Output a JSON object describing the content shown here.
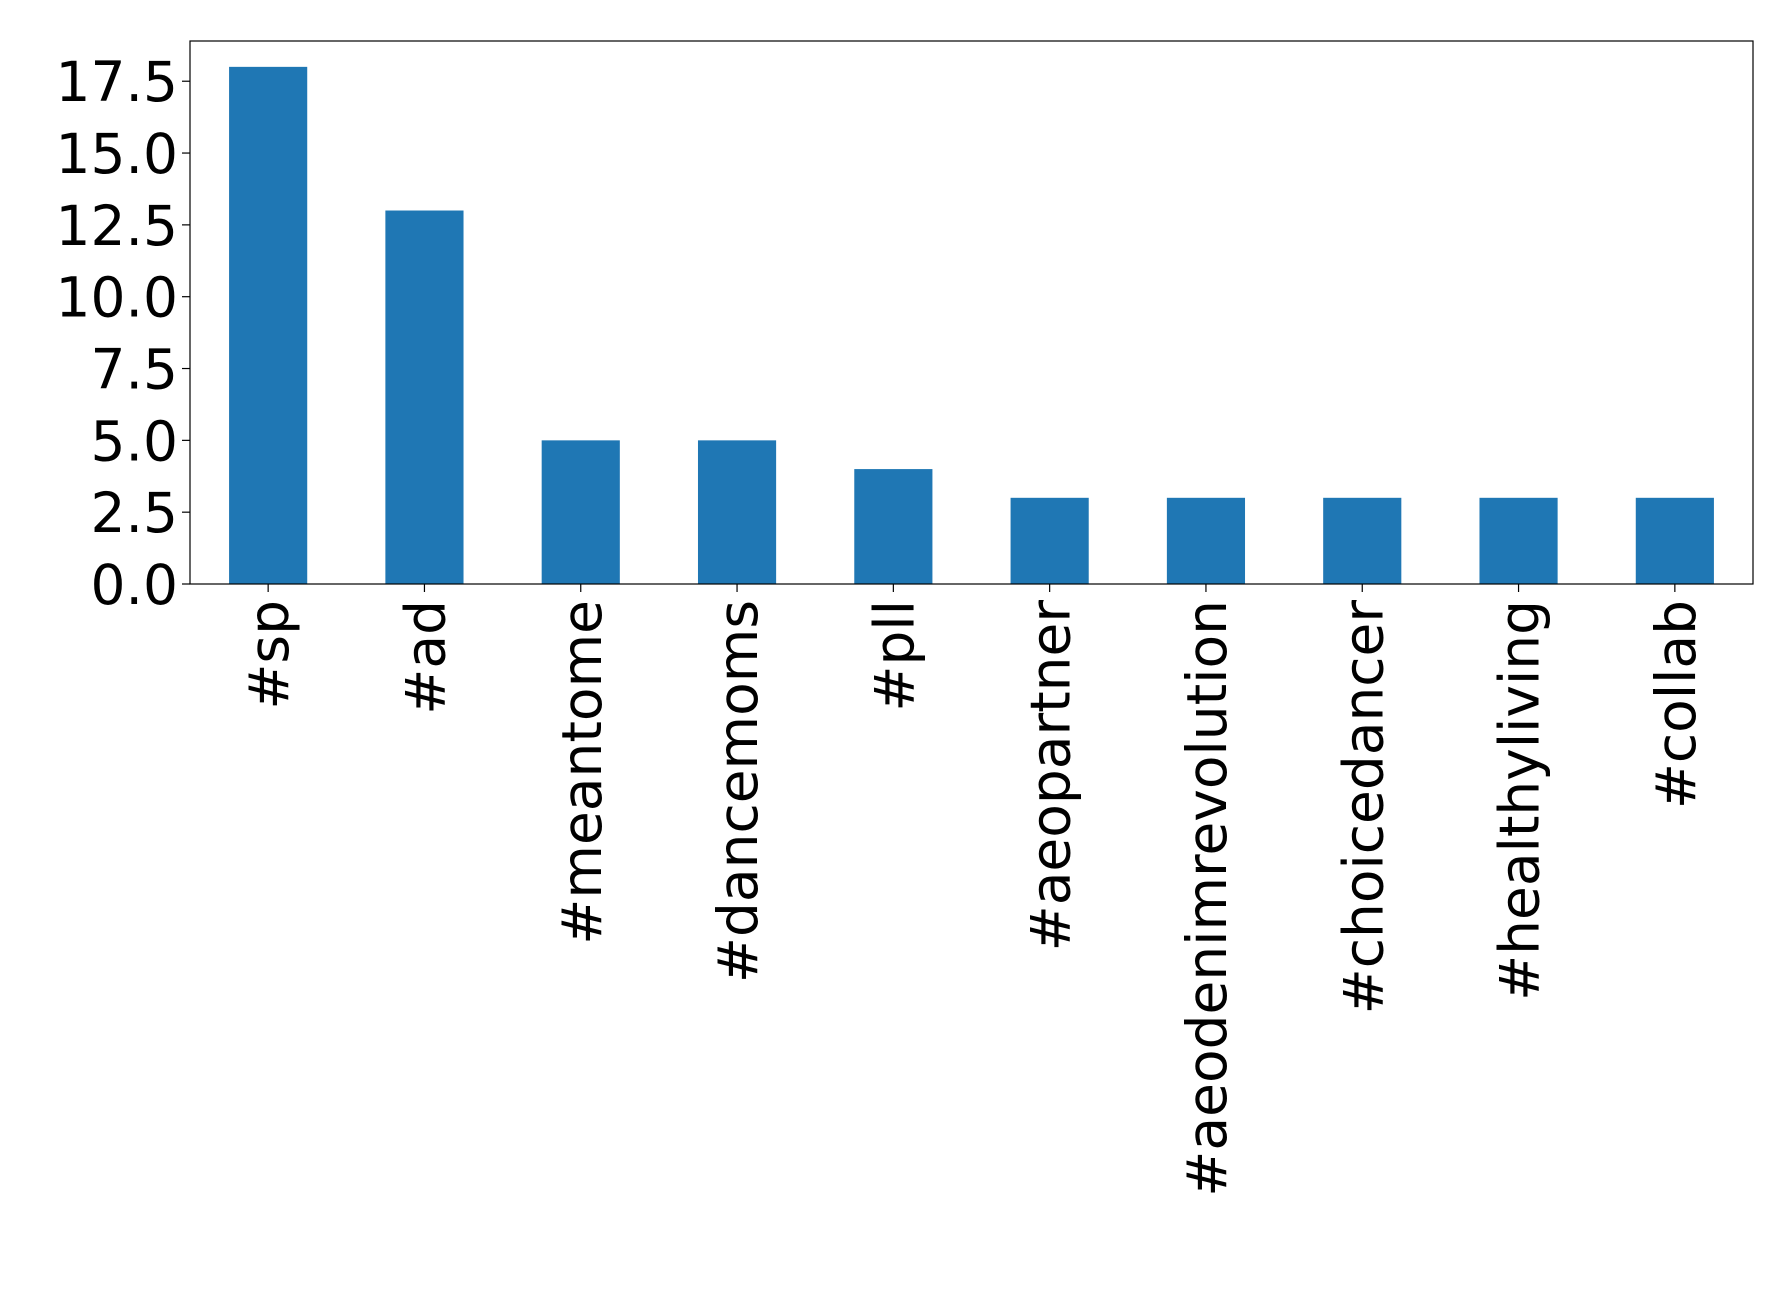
{
  "chart_data": {
    "type": "bar",
    "categories": [
      "#sp",
      "#ad",
      "#meantome",
      "#dancemoms",
      "#pll",
      "#aeopartner",
      "#aeodenimrevolution",
      "#choicedancer",
      "#healthyliving",
      "#collab"
    ],
    "values": [
      18,
      13,
      5,
      5,
      4,
      3,
      3,
      3,
      3,
      3
    ],
    "color": "#1f77b4",
    "ylim": [
      0,
      18.9
    ],
    "yticks": [
      {
        "value": 0,
        "label": "0.0"
      },
      {
        "value": 2.5,
        "label": "2.5"
      },
      {
        "value": 5,
        "label": "5.0"
      },
      {
        "value": 7.5,
        "label": "7.5"
      },
      {
        "value": 10,
        "label": "10.0"
      },
      {
        "value": 12.5,
        "label": "12.5"
      },
      {
        "value": 15,
        "label": "15.0"
      },
      {
        "value": 17.5,
        "label": "17.5"
      }
    ],
    "grid": false
  }
}
